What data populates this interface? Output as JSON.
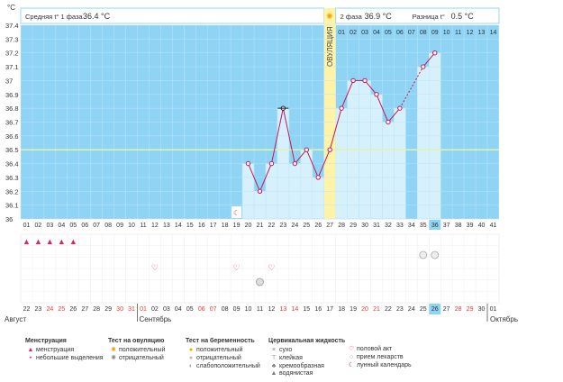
{
  "chart_data": {
    "type": "line",
    "title": "",
    "ylabel": "°C",
    "ylim": [
      36,
      37.4
    ],
    "yticks": [
      "37.4",
      "37.3",
      "37.2",
      "37.1",
      "37",
      "36.9",
      "36.8",
      "36.7",
      "36.6",
      "36.5",
      "36.4",
      "36.3",
      "36.2",
      "36.1",
      "36"
    ],
    "coverline": 36.5,
    "phase1_label": "Средняя t° 1 фаза",
    "phase1_value": "36.4 °C",
    "phase2_label": "2 фаза",
    "phase2_value": "36.9 °C",
    "diff_label": "Разница t°",
    "diff_value": "0.5 °C",
    "ovulation_label": "ОВУЛЯЦИЯ",
    "ovulation_day": 27,
    "post_days": [
      "01",
      "02",
      "03",
      "04",
      "05",
      "06",
      "07",
      "08",
      "09",
      "10",
      "11",
      "12",
      "13",
      "14"
    ],
    "cycle_days": [
      "01",
      "02",
      "03",
      "04",
      "05",
      "06",
      "07",
      "08",
      "09",
      "10",
      "11",
      "12",
      "13",
      "14",
      "15",
      "16",
      "17",
      "18",
      "19",
      "20",
      "21",
      "22",
      "23",
      "24",
      "25",
      "26",
      "27",
      "28",
      "29",
      "30",
      "31",
      "32",
      "33",
      "34",
      "35",
      "36",
      "37",
      "38",
      "39",
      "40",
      "41"
    ],
    "highlight_day": 36,
    "temperatures": [
      {
        "day": 20,
        "value": 36.4
      },
      {
        "day": 21,
        "value": 36.2
      },
      {
        "day": 22,
        "value": 36.4
      },
      {
        "day": 23,
        "value": 36.8
      },
      {
        "day": 24,
        "value": 36.4
      },
      {
        "day": 25,
        "value": 36.5
      },
      {
        "day": 26,
        "value": 36.3
      },
      {
        "day": 27,
        "value": 36.5
      },
      {
        "day": 28,
        "value": 36.8
      },
      {
        "day": 29,
        "value": 37.0
      },
      {
        "day": 30,
        "value": 37.0
      },
      {
        "day": 31,
        "value": 36.9
      },
      {
        "day": 32,
        "value": 36.7
      },
      {
        "day": 33,
        "value": 36.8
      },
      {
        "day": 35,
        "value": 37.1
      },
      {
        "day": 36,
        "value": 37.2
      }
    ],
    "dates": [
      "22",
      "23",
      "24",
      "25",
      "26",
      "27",
      "28",
      "29",
      "30",
      "31",
      "01",
      "02",
      "03",
      "04",
      "05",
      "06",
      "07",
      "08",
      "09",
      "10",
      "11",
      "12",
      "13",
      "14",
      "15",
      "16",
      "17",
      "18",
      "19",
      "20",
      "21",
      "22",
      "23",
      "24",
      "25",
      "26",
      "27",
      "28",
      "29",
      "30",
      "01"
    ],
    "red_date_indices": [
      2,
      3,
      8,
      9,
      10,
      15,
      16,
      22,
      23,
      29,
      30,
      37,
      38
    ],
    "month_august": "Август",
    "month_september": "Сентябрь",
    "month_october": "Октябрь",
    "menstruation_days": [
      1,
      2,
      3,
      4,
      5
    ],
    "moon_day": 19,
    "intercourse_days": [
      12,
      19,
      22
    ],
    "pregnancy_test_neg_days": [
      35,
      36
    ],
    "weak_test_days": [
      21
    ],
    "colors": {
      "chart_bg": "#8fd3f5",
      "bar": "#d6f0fc",
      "ovulation": "#fff3a8",
      "line": "#c2185b",
      "coverline": "#dff5a8"
    }
  },
  "legend": {
    "menstruation": {
      "title": "Менструация",
      "items": [
        "менструация",
        "небольшие выделения"
      ]
    },
    "ovulation_test": {
      "title": "Тест на овуляцию",
      "items": [
        "положительный",
        "отрицательный"
      ]
    },
    "pregnancy_test": {
      "title": "Тест на беременность",
      "items": [
        "положительный",
        "отрицательный",
        "слабоположительный"
      ]
    },
    "cervical": {
      "title": "Цервикальная жидкость",
      "items": [
        "сухо",
        "клейкая",
        "кремообразная",
        "водянистая"
      ]
    },
    "other": {
      "items": [
        "половой акт",
        "прием лекарств",
        "лунный календарь"
      ]
    }
  }
}
